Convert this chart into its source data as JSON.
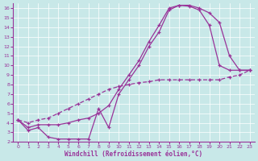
{
  "xlabel": "Windchill (Refroidissement éolien,°C)",
  "xlim": [
    -0.5,
    23.5
  ],
  "ylim": [
    2,
    16.5
  ],
  "xticks": [
    0,
    1,
    2,
    3,
    4,
    5,
    6,
    7,
    8,
    9,
    10,
    11,
    12,
    13,
    14,
    15,
    16,
    17,
    18,
    19,
    20,
    21,
    22,
    23
  ],
  "yticks": [
    2,
    3,
    4,
    5,
    6,
    7,
    8,
    9,
    10,
    11,
    12,
    13,
    14,
    15,
    16
  ],
  "bg_color": "#c8e8e8",
  "line_color": "#993399",
  "line1_x": [
    0,
    1,
    2,
    3,
    4,
    5,
    6,
    7,
    8,
    9,
    10,
    11,
    12,
    13,
    14,
    15,
    16,
    17,
    18,
    19,
    20,
    21,
    22,
    23
  ],
  "line1_y": [
    4.3,
    3.2,
    3.5,
    2.5,
    2.3,
    2.3,
    2.3,
    2.3,
    5.5,
    3.5,
    7.0,
    8.5,
    10.0,
    12.0,
    13.5,
    15.8,
    16.3,
    16.2,
    15.8,
    14.2,
    10.0,
    9.5,
    9.5,
    9.5
  ],
  "line2_x": [
    0,
    1,
    2,
    3,
    4,
    5,
    6,
    7,
    8,
    9,
    10,
    11,
    12,
    13,
    14,
    15,
    16,
    17,
    18,
    19,
    20,
    21,
    22,
    23
  ],
  "line2_y": [
    4.3,
    3.5,
    3.8,
    3.8,
    3.8,
    4.0,
    4.3,
    4.5,
    5.0,
    5.8,
    7.5,
    9.0,
    10.5,
    12.5,
    14.2,
    16.0,
    16.3,
    16.3,
    16.0,
    15.5,
    14.5,
    11.0,
    9.5,
    9.5
  ],
  "line3_x": [
    0,
    1,
    2,
    3,
    4,
    5,
    6,
    7,
    8,
    9,
    10,
    11,
    12,
    13,
    14,
    15,
    16,
    17,
    18,
    19,
    20,
    21,
    22,
    23
  ],
  "line3_y": [
    4.3,
    4.0,
    4.3,
    4.5,
    5.0,
    5.5,
    6.0,
    6.5,
    7.0,
    7.5,
    7.8,
    8.0,
    8.2,
    8.3,
    8.5,
    8.5,
    8.5,
    8.5,
    8.5,
    8.5,
    8.5,
    8.8,
    9.0,
    9.5
  ]
}
